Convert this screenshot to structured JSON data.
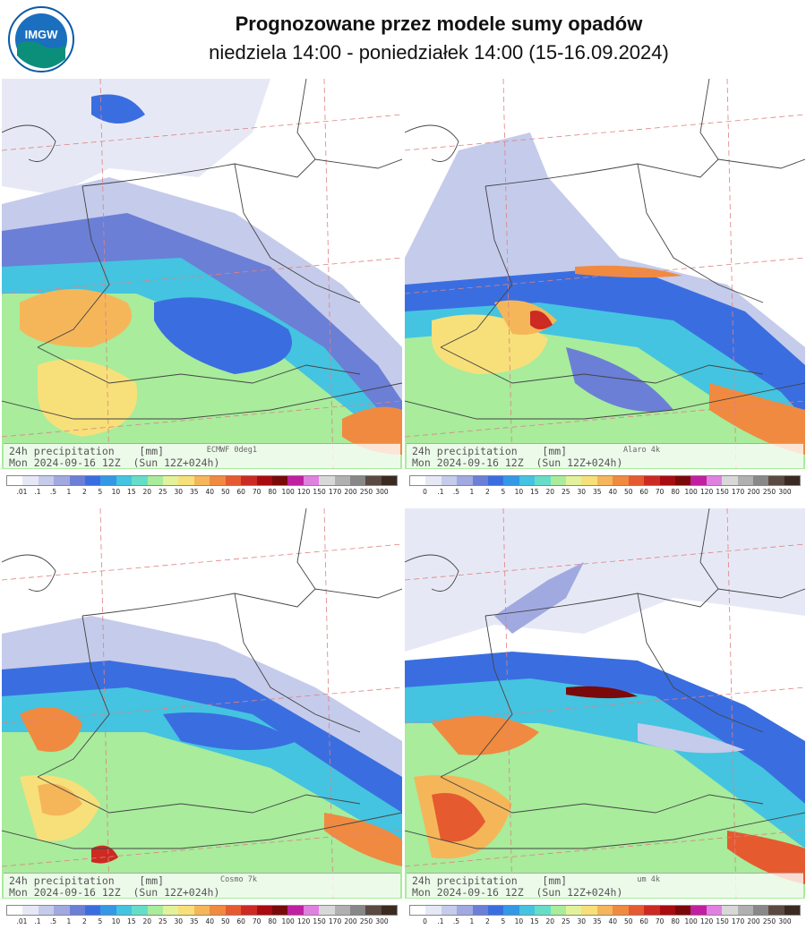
{
  "header": {
    "logo_text": "IMGW",
    "title": "Prognozowane przez modele sumy opadów",
    "subtitle": "niedziela 14:00 - poniedziałek 14:00 (15-16.09.2024)"
  },
  "panels": [
    {
      "line1": "24h precipitation    [mm]",
      "line2": "Mon 2024-09-16 12Z  (Sun 12Z+024h)",
      "model": "ECMWF 0deg1"
    },
    {
      "line1": "24h precipitation    [mm]",
      "line2": "Mon 2024-09-16 12Z  (Sun 12Z+024h)",
      "model": "Alaro 4k"
    },
    {
      "line1": "24h precipitation    [mm]",
      "line2": "Mon 2024-09-16 12Z  (Sun 12Z+024h)",
      "model": "Cosmo 7k"
    },
    {
      "line1": "24h precipitation    [mm]",
      "line2": "Mon 2024-09-16 12Z  (Sun 12Z+024h)",
      "model": "um 4k"
    }
  ],
  "colorbar_labels_a": [
    ".01",
    ".1",
    ".5",
    "1",
    "2",
    "5",
    "10",
    "15",
    "20",
    "25",
    "30",
    "35",
    "40",
    "50",
    "60",
    "70",
    "80",
    "100",
    "120",
    "150",
    "170",
    "200",
    "250",
    "300"
  ],
  "colorbar_labels_b": [
    "0",
    ".1",
    ".5",
    "1",
    "2",
    "5",
    "10",
    "15",
    "20",
    "25",
    "30",
    "35",
    "40",
    "50",
    "60",
    "70",
    "80",
    "100",
    "120",
    "150",
    "170",
    "200",
    "250",
    "300"
  ],
  "colorbar_colors": [
    "#ffffff",
    "#e6e9f5",
    "#c5cbeb",
    "#a0a9e0",
    "#6b7fd6",
    "#3a6ee0",
    "#3399e6",
    "#44c4e0",
    "#66ddc8",
    "#a8ec9c",
    "#e2f29a",
    "#f7e07a",
    "#f5b65a",
    "#f08a40",
    "#e65a30",
    "#cc2a22",
    "#a80c10",
    "#7a0a0a",
    "#c020a0",
    "#e080e0",
    "#d8d8d8",
    "#b0b0b0",
    "#888888",
    "#5a4a40",
    "#3a2a20"
  ],
  "colors": {
    "border": "#444444",
    "graticule": "#e08080",
    "light_rain": "#c5cbeb",
    "blue": "#3a6ee0",
    "cyan": "#44c4e0",
    "green": "#a8ec9c",
    "yellow": "#f7e07a",
    "orange": "#f08a40",
    "red": "#cc2a22"
  }
}
